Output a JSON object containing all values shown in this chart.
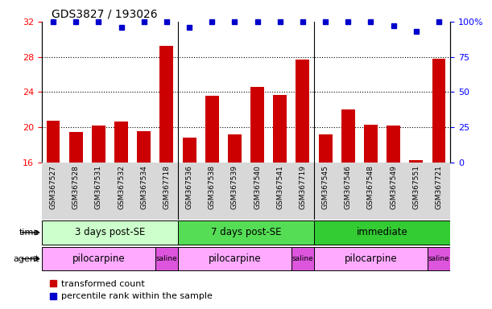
{
  "title": "GDS3827 / 193026",
  "samples": [
    "GSM367527",
    "GSM367528",
    "GSM367531",
    "GSM367532",
    "GSM367534",
    "GSM367718",
    "GSM367536",
    "GSM367538",
    "GSM367539",
    "GSM367540",
    "GSM367541",
    "GSM367719",
    "GSM367545",
    "GSM367546",
    "GSM367548",
    "GSM367549",
    "GSM367551",
    "GSM367721"
  ],
  "transformed_count": [
    20.7,
    19.4,
    20.2,
    20.6,
    19.5,
    29.2,
    18.8,
    23.6,
    19.2,
    24.6,
    23.7,
    27.7,
    19.2,
    22.0,
    20.3,
    20.2,
    16.2,
    27.8
  ],
  "percentile_rank": [
    100,
    100,
    100,
    96,
    100,
    100,
    96,
    100,
    100,
    100,
    100,
    100,
    100,
    100,
    100,
    97,
    93,
    100
  ],
  "ylim_left": [
    16,
    32
  ],
  "ylim_right": [
    0,
    100
  ],
  "yticks_left": [
    16,
    20,
    24,
    28,
    32
  ],
  "yticks_right": [
    0,
    25,
    50,
    75,
    100
  ],
  "bar_color": "#cc0000",
  "dot_color": "#0000cc",
  "time_groups": [
    {
      "label": "3 days post-SE",
      "start": 0,
      "end": 5,
      "color": "#ccffcc"
    },
    {
      "label": "7 days post-SE",
      "start": 6,
      "end": 11,
      "color": "#55dd55"
    },
    {
      "label": "immediate",
      "start": 12,
      "end": 17,
      "color": "#33cc33"
    }
  ],
  "agent_groups": [
    {
      "label": "pilocarpine",
      "start": 0,
      "end": 4,
      "color": "#ffaaff"
    },
    {
      "label": "saline",
      "start": 5,
      "end": 5,
      "color": "#dd55dd"
    },
    {
      "label": "pilocarpine",
      "start": 6,
      "end": 10,
      "color": "#ffaaff"
    },
    {
      "label": "saline",
      "start": 11,
      "end": 11,
      "color": "#dd55dd"
    },
    {
      "label": "pilocarpine",
      "start": 12,
      "end": 16,
      "color": "#ffaaff"
    },
    {
      "label": "saline",
      "start": 17,
      "end": 17,
      "color": "#dd55dd"
    }
  ],
  "xtick_bg": "#d8d8d8",
  "legend_red_label": "transformed count",
  "legend_blue_label": "percentile rank within the sample",
  "group_separators": [
    5.5,
    11.5
  ]
}
